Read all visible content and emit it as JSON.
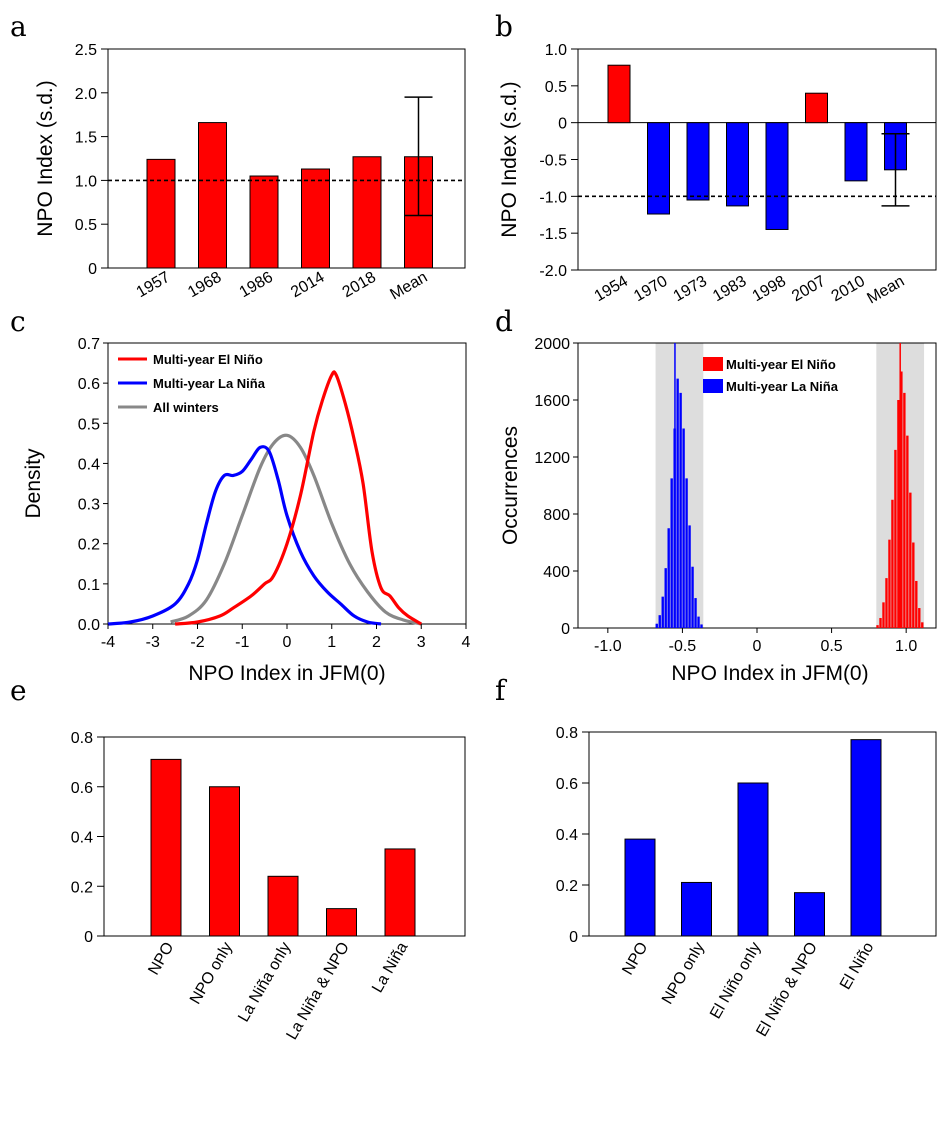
{
  "panel_labels": [
    "a",
    "b",
    "c",
    "d",
    "e",
    "f"
  ],
  "colors": {
    "red": "#ff0000",
    "blue": "#0000ff",
    "gray": "#888888",
    "shade": "#dddddd"
  },
  "chart_data": [
    {
      "id": "a",
      "type": "bar",
      "ylabel": "NPO Index (s.d.)",
      "ylim": [
        0,
        2.5
      ],
      "yticks": [
        "0",
        "0.5",
        "1.0",
        "1.5",
        "2.0",
        "2.5"
      ],
      "categories": [
        "1957",
        "1968",
        "1986",
        "2014",
        "2018",
        "Mean"
      ],
      "values": [
        1.24,
        1.66,
        1.05,
        1.13,
        1.27,
        1.27
      ],
      "bar_colors": [
        "red",
        "red",
        "red",
        "red",
        "red",
        "red"
      ],
      "error_bar": {
        "category": "Mean",
        "low": 0.6,
        "high": 1.95
      },
      "reference_line": 1.0
    },
    {
      "id": "b",
      "type": "bar",
      "ylabel": "NPO Index (s.d.)",
      "ylim": [
        -2.0,
        1.0
      ],
      "yticks": [
        "-2.0",
        "-1.5",
        "-1.0",
        "-0.5",
        "0",
        "0.5",
        "1.0"
      ],
      "categories": [
        "1954",
        "1970",
        "1973",
        "1983",
        "1998",
        "2007",
        "2010",
        "Mean"
      ],
      "values": [
        0.78,
        -1.24,
        -1.05,
        -1.13,
        -1.45,
        0.4,
        -0.79,
        -0.64
      ],
      "bar_colors": [
        "red",
        "blue",
        "blue",
        "blue",
        "blue",
        "red",
        "blue",
        "blue"
      ],
      "error_bar": {
        "category": "Mean",
        "low": -1.13,
        "high": -0.15
      },
      "reference_line": -1.0
    },
    {
      "id": "c",
      "type": "line",
      "xlabel": "NPO Index in JFM(0)",
      "ylabel": "Density",
      "xlim": [
        -4,
        4
      ],
      "ylim": [
        0,
        0.7
      ],
      "xticks": [
        "-4",
        "-3",
        "-2",
        "-1",
        "0",
        "1",
        "2",
        "3",
        "4"
      ],
      "yticks": [
        "0.0",
        "0.1",
        "0.2",
        "0.3",
        "0.4",
        "0.5",
        "0.6",
        "0.7"
      ],
      "series": [
        {
          "name": "Multi-year El Niño",
          "color": "red",
          "x": [
            -2.5,
            -2,
            -1.5,
            -1.2,
            -0.8,
            -0.5,
            -0.3,
            0,
            0.3,
            0.6,
            0.8,
            1.0,
            1.1,
            1.3,
            1.5,
            1.7,
            1.9,
            2.1,
            2.3,
            2.5,
            2.7,
            3.0
          ],
          "y": [
            0,
            0.005,
            0.02,
            0.04,
            0.07,
            0.1,
            0.12,
            0.2,
            0.32,
            0.48,
            0.56,
            0.62,
            0.62,
            0.55,
            0.46,
            0.35,
            0.18,
            0.09,
            0.07,
            0.04,
            0.02,
            0
          ]
        },
        {
          "name": "Multi-year La Niña",
          "color": "blue",
          "x": [
            -4,
            -3.5,
            -3,
            -2.5,
            -2.2,
            -2,
            -1.8,
            -1.6,
            -1.4,
            -1.2,
            -1.0,
            -0.8,
            -0.6,
            -0.4,
            -0.2,
            0,
            0.3,
            0.6,
            0.9,
            1.2,
            1.5,
            1.8,
            2.1
          ],
          "y": [
            0,
            0.005,
            0.02,
            0.05,
            0.1,
            0.16,
            0.25,
            0.33,
            0.37,
            0.37,
            0.38,
            0.41,
            0.44,
            0.43,
            0.36,
            0.27,
            0.18,
            0.12,
            0.08,
            0.05,
            0.02,
            0.005,
            0
          ]
        },
        {
          "name": "All winters",
          "color": "gray",
          "x": [
            -2.6,
            -2.2,
            -1.8,
            -1.4,
            -1.0,
            -0.6,
            -0.3,
            0,
            0.3,
            0.6,
            1.0,
            1.4,
            1.8,
            2.2,
            2.6,
            3.0
          ],
          "y": [
            0.005,
            0.02,
            0.06,
            0.15,
            0.27,
            0.39,
            0.45,
            0.47,
            0.44,
            0.37,
            0.25,
            0.15,
            0.08,
            0.03,
            0.01,
            0.0
          ]
        }
      ],
      "legend": "top-left"
    },
    {
      "id": "d",
      "type": "bar",
      "xlabel": "NPO Index in JFM(0)",
      "ylabel": "Occurrences",
      "xlim": [
        -1.2,
        1.2
      ],
      "ylim": [
        0,
        2000
      ],
      "xticks": [
        "-1.0",
        "-0.5",
        "0",
        "0.5",
        "1.0"
      ],
      "yticks": [
        "0",
        "400",
        "800",
        "1200",
        "1600",
        "2000"
      ],
      "bin_width": 0.02,
      "shaded_ranges": [
        [
          -0.68,
          -0.36
        ],
        [
          0.8,
          1.12
        ]
      ],
      "series": [
        {
          "name": "Multi-year El Niño",
          "color": "red",
          "mean_line": 0.96,
          "bins": [
            0.8,
            0.82,
            0.84,
            0.86,
            0.88,
            0.9,
            0.92,
            0.94,
            0.96,
            0.98,
            1.0,
            1.02,
            1.04,
            1.06,
            1.08,
            1.1
          ],
          "counts": [
            20,
            70,
            180,
            350,
            620,
            900,
            1250,
            1600,
            1800,
            1650,
            1350,
            950,
            600,
            330,
            140,
            40
          ]
        },
        {
          "name": "Multi-year La Niña",
          "color": "blue",
          "mean_line": -0.55,
          "bins": [
            -0.68,
            -0.66,
            -0.64,
            -0.62,
            -0.6,
            -0.58,
            -0.56,
            -0.54,
            -0.52,
            -0.5,
            -0.48,
            -0.46,
            -0.44,
            -0.42,
            -0.4,
            -0.38
          ],
          "counts": [
            30,
            90,
            220,
            420,
            700,
            1050,
            1400,
            1750,
            1650,
            1400,
            1050,
            720,
            430,
            210,
            80,
            25
          ]
        }
      ],
      "legend": "top-right"
    },
    {
      "id": "e",
      "type": "bar",
      "ylim": [
        0,
        0.8
      ],
      "yticks": [
        "0",
        "0.2",
        "0.4",
        "0.6",
        "0.8"
      ],
      "categories": [
        "NPO",
        "NPO only",
        "La Niña only",
        "La Niña & NPO",
        "La Niña"
      ],
      "values": [
        0.71,
        0.6,
        0.24,
        0.11,
        0.35
      ],
      "bar_colors": [
        "red",
        "red",
        "red",
        "red",
        "red"
      ]
    },
    {
      "id": "f",
      "type": "bar",
      "ylim": [
        0,
        0.8
      ],
      "yticks": [
        "0",
        "0.2",
        "0.4",
        "0.6",
        "0.8"
      ],
      "categories": [
        "NPO",
        "NPO only",
        "El Niño only",
        "El Niño & NPO",
        "El Niño"
      ],
      "values": [
        0.38,
        0.21,
        0.6,
        0.17,
        0.77
      ],
      "bar_colors": [
        "blue",
        "blue",
        "blue",
        "blue",
        "blue"
      ]
    }
  ]
}
